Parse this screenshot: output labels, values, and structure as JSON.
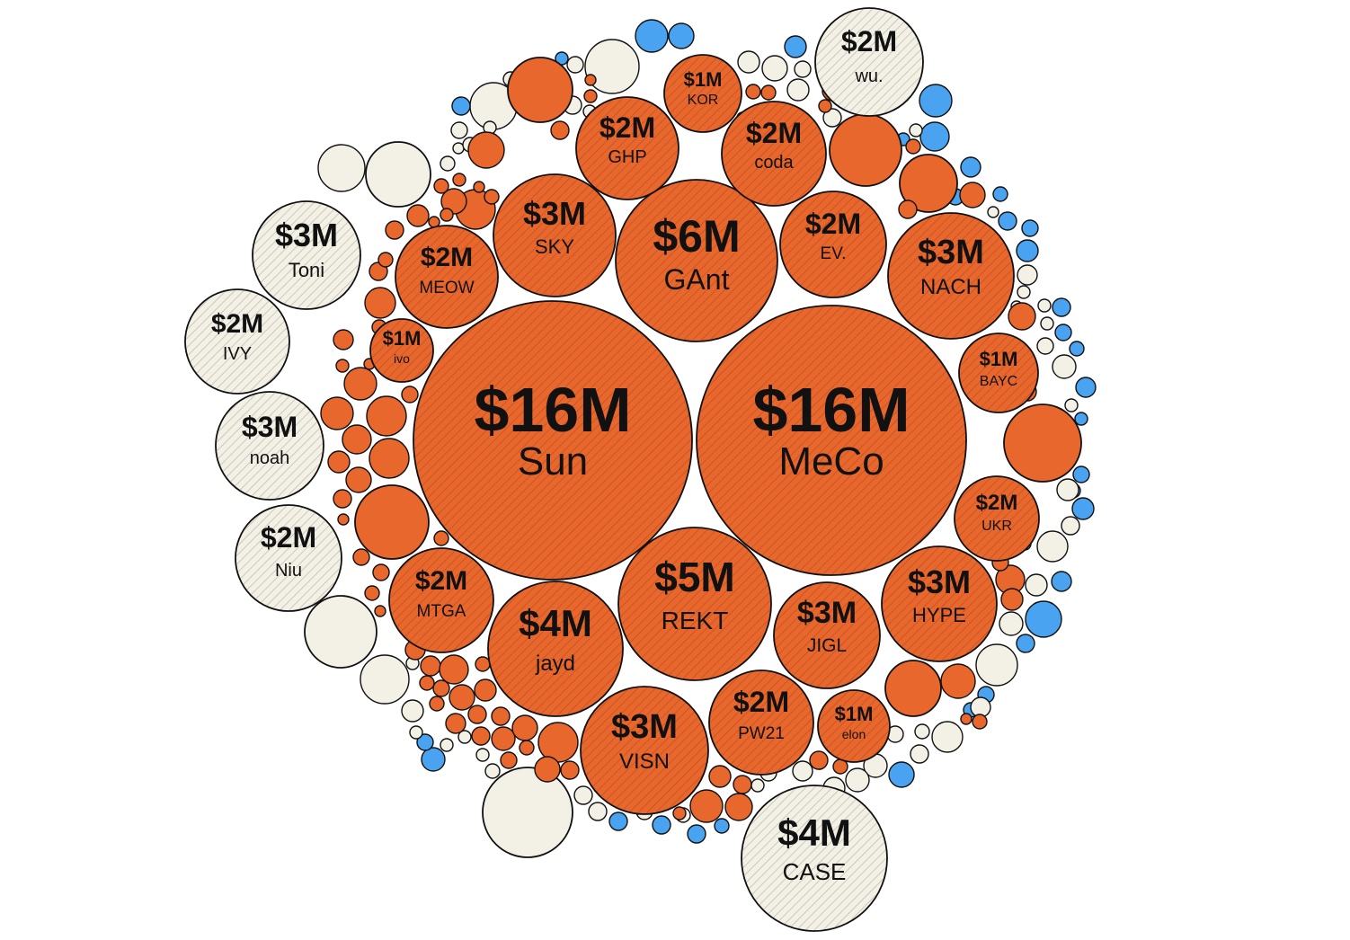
{
  "colors": {
    "orange": "#e8672d",
    "cream": "#f3f0e6",
    "blue": "#4aa3f0",
    "stroke": "#111111",
    "hatch": "#9a3b14",
    "hatch_cream": "#b8b2a3"
  },
  "chart_data": {
    "type": "bubble",
    "title": "",
    "unit": "USD",
    "labeled_bubbles": [
      {
        "value_label": "$16M",
        "name": "Sun",
        "value": 16,
        "group": "orange"
      },
      {
        "value_label": "$16M",
        "name": "MeCo",
        "value": 16,
        "group": "orange"
      },
      {
        "value_label": "$6M",
        "name": "GAnt",
        "value": 6,
        "group": "orange"
      },
      {
        "value_label": "$5M",
        "name": "REKT",
        "value": 5,
        "group": "orange"
      },
      {
        "value_label": "$4M",
        "name": "jayd",
        "value": 4,
        "group": "orange"
      },
      {
        "value_label": "$3M",
        "name": "SKY",
        "value": 3,
        "group": "orange"
      },
      {
        "value_label": "$3M",
        "name": "NACH",
        "value": 3,
        "group": "orange"
      },
      {
        "value_label": "$3M",
        "name": "HYPE",
        "value": 3,
        "group": "orange"
      },
      {
        "value_label": "$3M",
        "name": "JIGL",
        "value": 3,
        "group": "orange"
      },
      {
        "value_label": "$3M",
        "name": "VISN",
        "value": 3,
        "group": "orange"
      },
      {
        "value_label": "$2M",
        "name": "GHP",
        "value": 2,
        "group": "orange"
      },
      {
        "value_label": "$2M",
        "name": "coda",
        "value": 2,
        "group": "orange"
      },
      {
        "value_label": "$2M",
        "name": "EV.",
        "value": 2,
        "group": "orange"
      },
      {
        "value_label": "$2M",
        "name": "MEOW",
        "value": 2,
        "group": "orange"
      },
      {
        "value_label": "$2M",
        "name": "UKR",
        "value": 2,
        "group": "orange"
      },
      {
        "value_label": "$2M",
        "name": "MTGA",
        "value": 2,
        "group": "orange"
      },
      {
        "value_label": "$2M",
        "name": "PW21",
        "value": 2,
        "group": "orange"
      },
      {
        "value_label": "$1M",
        "name": "KOR",
        "value": 1,
        "group": "orange"
      },
      {
        "value_label": "$1M",
        "name": "ivo",
        "value": 1,
        "group": "orange"
      },
      {
        "value_label": "$1M",
        "name": "BAYC",
        "value": 1,
        "group": "orange"
      },
      {
        "value_label": "$1M",
        "name": "elon",
        "value": 1,
        "group": "orange"
      },
      {
        "value_label": "$4M",
        "name": "CASE",
        "value": 4,
        "group": "cream"
      },
      {
        "value_label": "$3M",
        "name": "Toni",
        "value": 3,
        "group": "cream"
      },
      {
        "value_label": "$3M",
        "name": "noah",
        "value": 3,
        "group": "cream"
      },
      {
        "value_label": "$2M",
        "name": "wu.",
        "value": 2,
        "group": "cream"
      },
      {
        "value_label": "$2M",
        "name": "IVY",
        "value": 2,
        "group": "cream"
      },
      {
        "value_label": "$2M",
        "name": "Niu",
        "value": 2,
        "group": "cream"
      }
    ]
  }
}
